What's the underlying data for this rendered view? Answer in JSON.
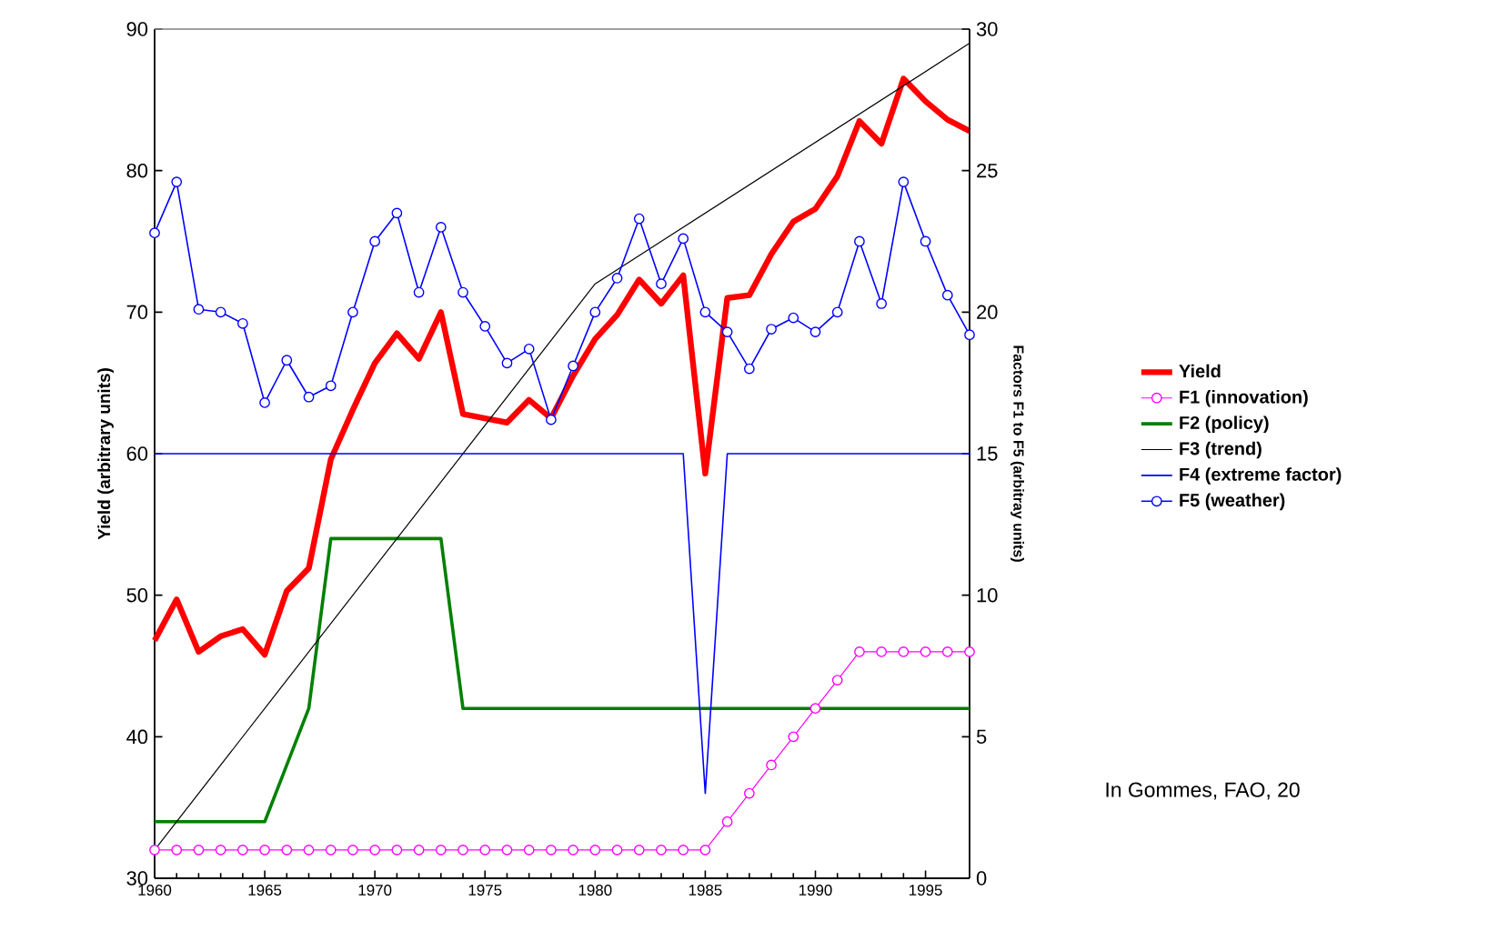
{
  "chart_data": {
    "type": "line",
    "xlabel": null,
    "ylabel": "Yield (arbitrary units)",
    "y2label": "Factors F1 to F5 (arbitray units)",
    "x": [
      1960,
      1961,
      1962,
      1963,
      1964,
      1965,
      1966,
      1967,
      1968,
      1969,
      1970,
      1971,
      1972,
      1973,
      1974,
      1975,
      1976,
      1977,
      1978,
      1979,
      1980,
      1981,
      1982,
      1983,
      1984,
      1985,
      1986,
      1987,
      1988,
      1989,
      1990,
      1991,
      1992,
      1993,
      1994,
      1995,
      1996,
      1997
    ],
    "xlim": [
      1960,
      1997
    ],
    "xticks": [
      1960,
      1965,
      1970,
      1975,
      1980,
      1985,
      1990,
      1995
    ],
    "ylim": [
      30,
      90
    ],
    "yticks": [
      30,
      40,
      50,
      60,
      70,
      80,
      90
    ],
    "y2lim": [
      0,
      30
    ],
    "y2ticks": [
      0,
      5,
      10,
      15,
      20,
      25,
      30
    ],
    "legend": "right",
    "grid": false,
    "annotations": [
      "In Gommes, FAO, 20"
    ],
    "series": [
      {
        "name": "Yield",
        "color": "#ff0000",
        "marker": "none",
        "values": [
          46.8,
          49.7,
          46.0,
          47.1,
          47.6,
          45.8,
          50.3,
          51.9,
          59.6,
          63.1,
          66.4,
          68.5,
          66.7,
          70.0,
          62.8,
          62.5,
          62.2,
          63.8,
          62.5,
          65.5,
          68.1,
          69.8,
          72.3,
          70.6,
          72.6,
          58.6,
          71.0,
          71.2,
          74.1,
          76.4,
          77.3,
          79.6,
          83.5,
          81.9,
          86.5,
          84.9,
          83.6,
          82.8
        ]
      },
      {
        "name": "F1 (innovation)",
        "color": "#ff00ff",
        "marker": "circle",
        "axis": "y2",
        "values": [
          1,
          1,
          1,
          1,
          1,
          1,
          1,
          1,
          1,
          1,
          1,
          1,
          1,
          1,
          1,
          1,
          1,
          1,
          1,
          1,
          1,
          1,
          1,
          1,
          1,
          1,
          2,
          3,
          4,
          5,
          6,
          7,
          8,
          8,
          8,
          8,
          8,
          8
        ]
      },
      {
        "name": "F2 (policy)",
        "color": "#008000",
        "marker": "none",
        "axis": "y2",
        "values": [
          2,
          2,
          2,
          2,
          2,
          2,
          4,
          6,
          12,
          12,
          12,
          12,
          12,
          12,
          6,
          6,
          6,
          6,
          6,
          6,
          6,
          6,
          6,
          6,
          6,
          6,
          6,
          6,
          6,
          6,
          6,
          6,
          6,
          6,
          6,
          6,
          6,
          6
        ]
      },
      {
        "name": "F3 (trend)",
        "color": "#000000",
        "marker": "none",
        "axis": "y2",
        "x": [
          1960,
          1980,
          1997
        ],
        "values": [
          1,
          21,
          29.5
        ]
      },
      {
        "name": "F4 (extreme factor)",
        "color": "#0000ff",
        "marker": "none",
        "axis": "y2",
        "values": [
          15,
          15,
          15,
          15,
          15,
          15,
          15,
          15,
          15,
          15,
          15,
          15,
          15,
          15,
          15,
          15,
          15,
          15,
          15,
          15,
          15,
          15,
          15,
          15,
          15,
          3,
          15,
          15,
          15,
          15,
          15,
          15,
          15,
          15,
          15,
          15,
          15,
          15
        ]
      },
      {
        "name": "F5 (weather)",
        "color": "#0000ff",
        "marker": "circle",
        "axis": "y2",
        "values": [
          22.8,
          24.6,
          20.1,
          20.0,
          19.6,
          16.8,
          18.3,
          17.0,
          17.4,
          20.0,
          22.5,
          23.5,
          20.7,
          23.0,
          20.7,
          19.5,
          18.2,
          18.7,
          16.2,
          18.1,
          20.0,
          21.2,
          23.3,
          21.0,
          22.6,
          20.0,
          19.3,
          18.0,
          19.4,
          19.8,
          19.3,
          20.0,
          22.5,
          20.3,
          24.6,
          22.5,
          20.6,
          19.2
        ]
      }
    ]
  }
}
